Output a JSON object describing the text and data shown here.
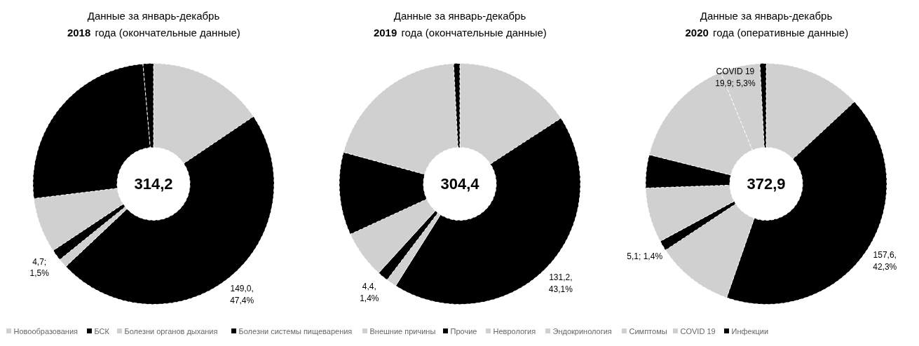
{
  "chart_data": [
    {
      "type": "donut",
      "title": "Данные за январь-декабрь",
      "subtitle": "2018 года (окончательные данные)",
      "annotations": [
        "314,2"
      ],
      "legend": "bottom",
      "categories": [
        "Новообразования",
        "БСК",
        "Болезни органов дыхания",
        "Болезни системы пищеварения",
        "Внешние причины",
        "Прочие",
        "Неврология",
        "Эндокринология",
        "Симптомы",
        "COVID 19",
        "Инфекции"
      ],
      "values": [
        48.9,
        149.0,
        3.8,
        4.7,
        23.2,
        80.3,
        null,
        null,
        null,
        null,
        4.4
      ],
      "colors": [
        "#d0d0d0",
        "#000000",
        "#d0d0d0",
        "#000000",
        "#d0d0d0",
        "#000000",
        "#d0d0d0",
        "#d0d0d0",
        "#d0d0d0",
        "#d0d0d0",
        "#000000"
      ],
      "value_labels": [
        null,
        "149,0,\n47,4%",
        null,
        "4,7;\n1,5%",
        null,
        null,
        null,
        null,
        null,
        null,
        null
      ]
    },
    {
      "type": "donut",
      "title": "Данные за январь-декабрь",
      "subtitle": "2019 года (окончательные данные)",
      "annotations": [
        "304,4"
      ],
      "categories": [
        null,
        null,
        null,
        null,
        null,
        null,
        null,
        null,
        null,
        null,
        null
      ],
      "values": [
        48.2,
        131.2,
        4.2,
        4.4,
        19.4,
        33.8,
        60.7,
        null,
        null,
        null,
        2.5
      ],
      "colors": [
        "#d0d0d0",
        "#000000",
        "#d0d0d0",
        "#000000",
        "#d0d0d0",
        "#000000",
        "#d0d0d0",
        "#d0d0d0",
        "#d0d0d0",
        "#d0d0d0",
        "#000000"
      ],
      "value_labels": [
        null,
        "131,2,\n43,1%",
        null,
        "4,4,\n1,4%",
        null,
        null,
        null,
        null,
        null,
        null,
        null
      ]
    },
    {
      "type": "donut",
      "title": "Данные за январь-декабрь",
      "subtitle": "2020 года (оперативные данные)",
      "annotations": [
        "372,9"
      ],
      "categories": [
        null,
        null,
        null,
        null,
        null,
        null,
        null,
        null,
        null,
        null,
        null
      ],
      "values": [
        48.7,
        157.6,
        38.8,
        5.1,
        27.4,
        16.6,
        55.7,
        null,
        null,
        19.9,
        3.1
      ],
      "colors": [
        "#d0d0d0",
        "#000000",
        "#d0d0d0",
        "#000000",
        "#d0d0d0",
        "#000000",
        "#d0d0d0",
        "#d0d0d0",
        "#d0d0d0",
        "#d0d0d0",
        "#000000"
      ],
      "value_labels": [
        null,
        "157,6,\n42,3%",
        null,
        "5,1; 1,4%",
        null,
        null,
        null,
        null,
        null,
        "COVID 19\n19,9; 5,3%",
        null
      ]
    }
  ]
}
